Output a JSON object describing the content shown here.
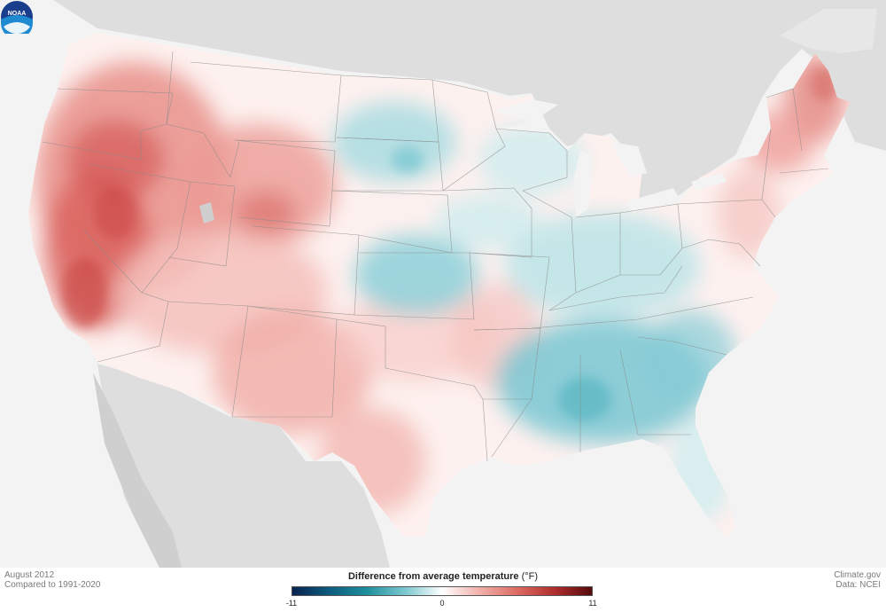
{
  "footer": {
    "date": "August 2012",
    "baseline": "Compared to 1991-2020",
    "source_site": "Climate.gov",
    "source_data": "Data: NCEI"
  },
  "legend": {
    "title": "Difference from average temperature",
    "unit": "(°F)",
    "min_label": "-11",
    "mid_label": "0",
    "max_label": "11",
    "colors": [
      "#08224f",
      "#1e8f9d",
      "#ffffff",
      "#dc6b64",
      "#540b0b"
    ]
  },
  "logo": {
    "text": "NOAA",
    "icon": "noaa-logo-icon"
  },
  "colors": {
    "land_other": "#dedede",
    "ocean": "#f3f3f3",
    "warm": "#e5827c",
    "cool": "#6cc4cf"
  }
}
